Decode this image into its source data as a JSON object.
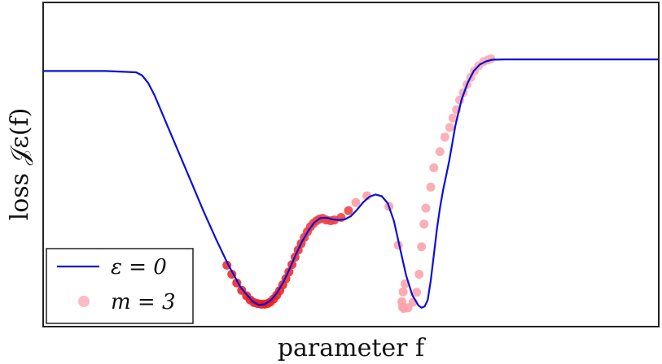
{
  "chart_data": {
    "type": "line",
    "title": "",
    "xlabel": "parameter f",
    "ylabel": "loss 𝒥ε(f)",
    "xlim": [
      0,
      100
    ],
    "ylim": [
      0,
      100
    ],
    "grid": false,
    "legend_position": "bottom-left",
    "xticks": [],
    "yticks": [],
    "series": [
      {
        "name": "ε = 0",
        "style": "line",
        "color": "#0a10d8",
        "x": [
          0,
          5,
          10,
          15,
          16,
          17,
          18,
          19,
          20,
          22,
          24,
          26,
          28,
          30,
          32,
          34,
          35,
          36,
          37,
          38,
          39,
          40,
          41,
          42,
          43,
          44,
          45,
          46,
          47,
          48,
          49,
          50,
          51,
          52,
          53,
          54,
          55,
          56,
          57,
          58,
          59,
          60,
          61,
          61.5,
          62,
          62.5,
          63,
          63.5,
          64,
          64.5,
          65,
          66,
          67,
          68,
          69,
          70,
          71,
          72,
          73,
          75,
          80,
          90,
          100
        ],
        "y": [
          79,
          79,
          79,
          78.6,
          77.6,
          75.2,
          71.5,
          67,
          62.5,
          53.5,
          44.5,
          35.5,
          27,
          19,
          12,
          7.5,
          6.5,
          6.7,
          8,
          10.3,
          13.6,
          17.6,
          22,
          26,
          29.3,
          32,
          33.4,
          33.5,
          33,
          32.8,
          33,
          34,
          36,
          38.3,
          40,
          40.7,
          40.2,
          38,
          32.5,
          24,
          15.5,
          9.5,
          6.3,
          5.6,
          6,
          8,
          14,
          22,
          30,
          36.5,
          42,
          51,
          62,
          70,
          75.3,
          79,
          81,
          82,
          82.5,
          82.6,
          82.6,
          82.6,
          82.6
        ]
      },
      {
        "name": "m = 3",
        "style": "scatter",
        "colors": {
          "low": "#ee1c1c",
          "high": "#fcbcc4"
        },
        "x": [
          29.8,
          30.6,
          31.4,
          32.2,
          33,
          33.6,
          34.2,
          34.8,
          35.4,
          35.9,
          36.4,
          36.9,
          37.4,
          37.9,
          38.4,
          38.9,
          39.4,
          39.9,
          40.4,
          40.9,
          41.4,
          41.9,
          42.4,
          42.9,
          43.4,
          43.9,
          44.4,
          44.9,
          45.4,
          46,
          46.7,
          47.3,
          48.4,
          49.6,
          50.8,
          52.6,
          56.2,
          57.7,
          58.8,
          58.5,
          58.3,
          58.4,
          58.6,
          59.3,
          60.1,
          60.7,
          61.1,
          61.5,
          61.9,
          62.2,
          63,
          63.5,
          64.5,
          65.3,
          66.1,
          66.6,
          67.2,
          67.7,
          68.3,
          68.9,
          69.5,
          70.1,
          70.8,
          71.6,
          72.3,
          72.8
        ],
        "y": [
          18.8,
          16,
          13.3,
          11,
          9.3,
          8,
          7.2,
          6.9,
          6.7,
          6.7,
          6.9,
          7.4,
          8.3,
          9.5,
          10.9,
          12.7,
          14.6,
          16.7,
          19,
          21.3,
          23.5,
          25.5,
          27.4,
          29.2,
          30.7,
          31.8,
          32.6,
          33.1,
          33.3,
          32.8,
          32.6,
          32.8,
          33.6,
          35.7,
          38.2,
          40.3,
          37,
          25,
          13,
          10.5,
          7.5,
          5.8,
          5.4,
          5.6,
          7.3,
          10.4,
          16,
          24.5,
          31.5,
          36.5,
          43,
          49,
          54,
          58.5,
          61.5,
          64.4,
          67,
          70,
          72.3,
          74.8,
          77,
          79,
          80.6,
          81.9,
          82.4,
          82.8
        ]
      }
    ]
  },
  "legend": {
    "entries": [
      {
        "label": "ε = 0"
      },
      {
        "label": "m = 3"
      }
    ]
  }
}
